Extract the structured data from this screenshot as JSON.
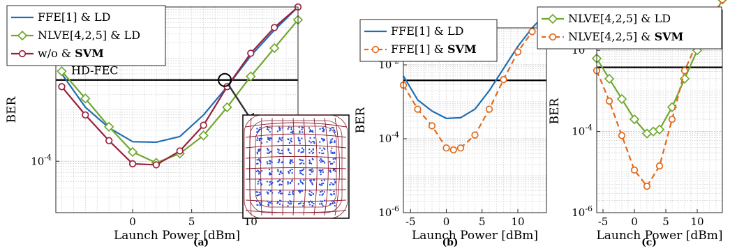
{
  "chart_data": [
    {
      "panel": "(a)",
      "type": "line",
      "xlabel": "Launch Power [dBm]",
      "ylabel": "BER",
      "xlim": [
        -6.5,
        14
      ],
      "ylim_log10": [
        -5.0,
        -1.0
      ],
      "scale_y": "log",
      "xticks": [
        {
          "v": 0,
          "t": "0"
        },
        {
          "v": 5,
          "t": "5"
        },
        {
          "v": 10,
          "t": "10"
        }
      ],
      "yticks": [
        {
          "v": -4,
          "base": "10",
          "exp": "-4"
        }
      ],
      "grid": true,
      "threshold": {
        "label": "HD-FEC",
        "log10": -2.42
      },
      "legend_position": "top-left",
      "inset": "Constellation diagram",
      "series": [
        {
          "legend": "FFE[1] & LD",
          "name_plain": "FFE[1] & LD",
          "name_bold": "",
          "color": "#1f6eb4",
          "marker": "none",
          "dashed": false,
          "x": [
            -6,
            -4,
            -2,
            0,
            2,
            4,
            6,
            8,
            10,
            12,
            14
          ],
          "log10": [
            -2.3,
            -2.95,
            -3.35,
            -3.62,
            -3.63,
            -3.52,
            -3.1,
            -2.55,
            -1.95,
            -1.45,
            -1.0
          ]
        },
        {
          "legend": "NLVE[4,2,5] & LD",
          "name_plain": "NLVE[4,2,5] & LD",
          "name_bold": "",
          "color": "#6fa82e",
          "marker": "diamond",
          "dashed": false,
          "x": [
            -6,
            -4,
            -2,
            0,
            2,
            4,
            6,
            8,
            10,
            12,
            14
          ],
          "log10": [
            -2.25,
            -2.78,
            -3.33,
            -3.82,
            -4.03,
            -3.85,
            -3.5,
            -2.95,
            -2.35,
            -1.8,
            -1.25
          ]
        },
        {
          "legend": "w/o & SVM",
          "name_plain": "w/o & ",
          "name_bold": "SVM",
          "color": "#9b1f3c",
          "marker": "circle",
          "dashed": false,
          "x": [
            -6,
            -4,
            -2,
            0,
            2,
            4,
            6,
            8,
            10,
            12,
            14
          ],
          "log10": [
            -2.55,
            -3.1,
            -3.6,
            -4.05,
            -4.07,
            -3.8,
            -3.3,
            -2.55,
            -1.9,
            -1.4,
            -1.0
          ]
        }
      ]
    },
    {
      "panel": "(b)",
      "type": "line",
      "xlabel": "Launch Power [dBm]",
      "ylabel": "BER",
      "xlim": [
        -6,
        14
      ],
      "ylim_log10": [
        -6.0,
        -1.0
      ],
      "scale_y": "log",
      "xticks": [
        {
          "v": -5,
          "t": "-5"
        },
        {
          "v": 0,
          "t": "0"
        },
        {
          "v": 5,
          "t": "5"
        },
        {
          "v": 10,
          "t": "10"
        }
      ],
      "yticks": [
        {
          "v": -2,
          "base": "10",
          "exp": "-2"
        },
        {
          "v": -4,
          "base": "10",
          "exp": "-4"
        },
        {
          "v": -6,
          "base": "10",
          "exp": "-6"
        }
      ],
      "grid": true,
      "threshold": {
        "label": "",
        "log10": -2.42
      },
      "legend_position": "top-left",
      "series": [
        {
          "legend": "FFE[1] & LD",
          "name_plain": "FFE[1] & LD",
          "name_bold": "",
          "color": "#1f6eb4",
          "marker": "none",
          "dashed": false,
          "x": [
            -6,
            -4,
            -2,
            0,
            2,
            4,
            6,
            8,
            10,
            12,
            14
          ],
          "log10": [
            -2.3,
            -2.95,
            -3.25,
            -3.45,
            -3.43,
            -3.2,
            -2.7,
            -2.1,
            -1.5,
            -1.0,
            -0.6
          ]
        },
        {
          "legend": "FFE[1] & SVM",
          "name_plain": "FFE[1] & ",
          "name_bold": "SVM",
          "color": "#e06a1e",
          "marker": "circle",
          "dashed": true,
          "x": [
            -6,
            -4,
            -2,
            0,
            1,
            2,
            4,
            6,
            8,
            10,
            12,
            14
          ],
          "log10": [
            -2.55,
            -3.2,
            -3.65,
            -4.25,
            -4.3,
            -4.25,
            -3.9,
            -3.2,
            -2.4,
            -1.65,
            -1.1,
            -0.65
          ]
        }
      ]
    },
    {
      "panel": "(c)",
      "type": "line",
      "xlabel": "Launch Power [dBm]",
      "ylabel": "BER",
      "xlim": [
        -6,
        14
      ],
      "ylim_log10": [
        -6.0,
        -1.0
      ],
      "scale_y": "log",
      "xticks": [
        {
          "v": -5,
          "t": "-5"
        },
        {
          "v": 0,
          "t": "0"
        },
        {
          "v": 5,
          "t": "5"
        },
        {
          "v": 10,
          "t": "10"
        }
      ],
      "yticks": [
        {
          "v": -2,
          "base": "10",
          "exp": "-2"
        },
        {
          "v": -4,
          "base": "10",
          "exp": "-4"
        },
        {
          "v": -6,
          "base": "10",
          "exp": "-6"
        }
      ],
      "grid": true,
      "threshold": {
        "label": "",
        "log10": -2.42
      },
      "legend_position": "top-left",
      "series": [
        {
          "legend": "NLVE[4,2,5] & LD",
          "name_plain": "NLVE[4,2,5] & LD",
          "name_bold": "",
          "color": "#6fa82e",
          "marker": "diamond",
          "dashed": false,
          "x": [
            -6,
            -4,
            -2,
            0,
            2,
            3,
            4,
            6,
            8,
            10,
            12,
            14
          ],
          "log10": [
            -2.2,
            -2.7,
            -3.2,
            -3.7,
            -4.05,
            -4.0,
            -3.95,
            -3.4,
            -2.7,
            -2.0,
            -1.35,
            -0.75
          ]
        },
        {
          "legend": "NLVE[4,2,5] & SVM",
          "name_plain": "NLVE[4,2,5] & ",
          "name_bold": "SVM",
          "color": "#e06a1e",
          "marker": "circle",
          "dashed": true,
          "x": [
            -6,
            -4,
            -2,
            0,
            2,
            4,
            6,
            8,
            10,
            12,
            14
          ],
          "log10": [
            -2.5,
            -3.25,
            -4.1,
            -4.95,
            -5.35,
            -4.85,
            -3.7,
            -2.5,
            -1.8,
            -1.3,
            -0.75
          ]
        }
      ]
    }
  ]
}
